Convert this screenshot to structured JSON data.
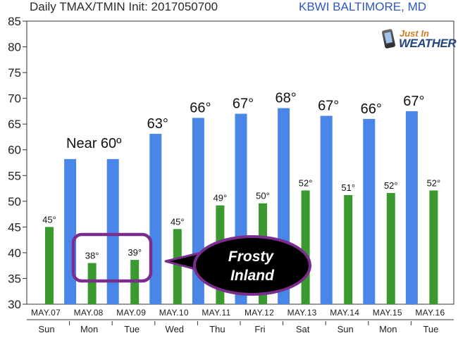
{
  "header": {
    "title": "Daily TMAX/TMIN Init: 2017050700",
    "station": "KBWI BALTIMORE, MD"
  },
  "logo": {
    "line1": "Just In",
    "line2": "WEATHER"
  },
  "colors": {
    "tmax": "#4a86e8",
    "tmin": "#3a9a2f",
    "callout_border": "#7b2d8e",
    "callout_fill": "#000000"
  },
  "annotations": {
    "near": "Near 60º",
    "callout_line1": "Frosty",
    "callout_line2": "Inland"
  },
  "chart_data": {
    "type": "bar",
    "categories": [
      "MAY.07",
      "MAY.08",
      "MAY.09",
      "MAY.10",
      "MAY.11",
      "MAY.12",
      "MAY.13",
      "MAY.14",
      "MAY.15",
      "MAY.16"
    ],
    "days": [
      "Sun",
      "Mon",
      "Tue",
      "Wed",
      "Thu",
      "Fri",
      "Sat",
      "Sun",
      "Mon",
      "Tue"
    ],
    "tmin": [
      45,
      38,
      38.6,
      44.6,
      49.2,
      49.6,
      52.1,
      51.2,
      51.6,
      52.1
    ],
    "tmax": [
      58.2,
      58.2,
      63.1,
      66.2,
      67,
      68.1,
      66.6,
      66,
      67.5
    ],
    "tmin_labels": [
      "45°",
      "38°",
      "39°",
      "45°",
      "49°",
      "50°",
      "52°",
      "51°",
      "52°",
      "52°"
    ],
    "tmax_labels": [
      "63°",
      "66°",
      "67°",
      "68°",
      "67°",
      "66°",
      "67°"
    ],
    "ylim": [
      30,
      85
    ],
    "yticks": [
      30,
      35,
      40,
      45,
      50,
      55,
      60,
      65,
      70,
      75,
      80,
      85
    ],
    "grid": false
  }
}
